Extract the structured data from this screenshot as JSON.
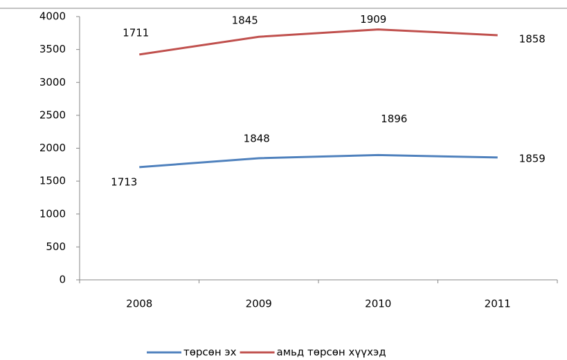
{
  "chart_data": {
    "type": "line",
    "stacked": true,
    "categories": [
      "2008",
      "2009",
      "2010",
      "2011"
    ],
    "series": [
      {
        "name": "төрсөн эх",
        "color": "#4f81bd",
        "values": [
          1713,
          1848,
          1896,
          1859
        ]
      },
      {
        "name": "амьд төрсөн хүүхэд",
        "color": "#c0504d",
        "values": [
          1711,
          1845,
          1909,
          1858
        ]
      }
    ],
    "ylim": [
      0,
      4000
    ],
    "yticks": [
      0,
      500,
      1000,
      1500,
      2000,
      2500,
      3000,
      3500,
      4000
    ],
    "legend": "bottom",
    "grid": false
  }
}
